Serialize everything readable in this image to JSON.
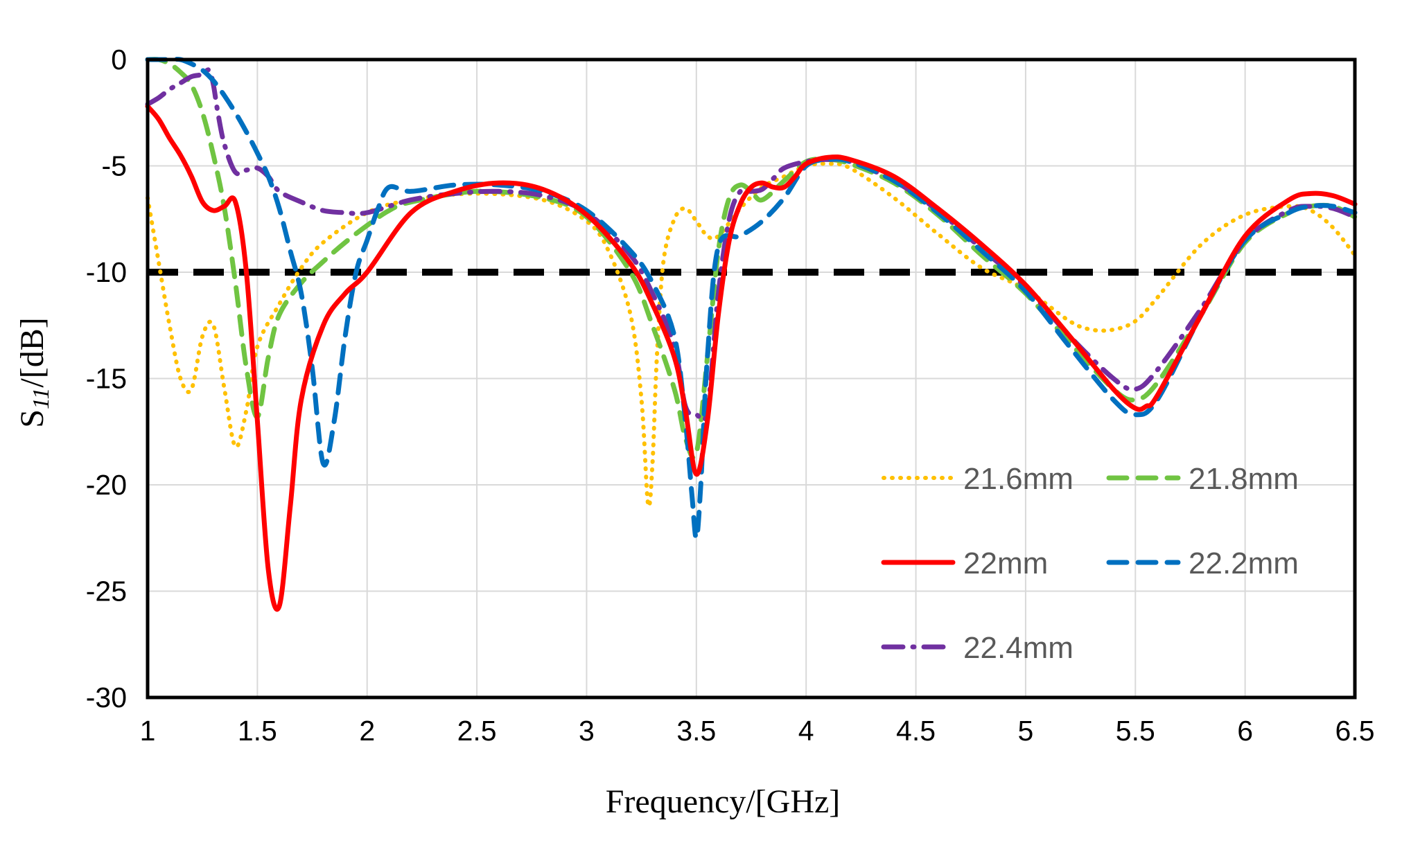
{
  "chart_data": {
    "type": "line",
    "title": "",
    "xlabel": "Frequency/[GHz]",
    "ylabel": "S11/[dB]",
    "ylabel_main": "S",
    "ylabel_sub": "11",
    "ylabel_rest": "/[dB]",
    "xlim": [
      1,
      6.5
    ],
    "ylim": [
      -30,
      0
    ],
    "xticks": [
      "1",
      "1.5",
      "2",
      "2.5",
      "3",
      "3.5",
      "4",
      "4.5",
      "5",
      "5.5",
      "6",
      "6.5"
    ],
    "yticks": [
      "0",
      "-5",
      "-10",
      "-15",
      "-20",
      "-25",
      "-30"
    ],
    "grid": true,
    "legend_position": "bottom-right",
    "reference_line": {
      "y": -10,
      "style": "dashed",
      "color": "#000000"
    },
    "series": [
      {
        "name": "21.6mm",
        "color": "#FFC000",
        "style": "dotted",
        "x": [
          1.0,
          1.05,
          1.1,
          1.15,
          1.2,
          1.25,
          1.3,
          1.35,
          1.4,
          1.45,
          1.5,
          1.6,
          1.7,
          1.8,
          2.0,
          2.2,
          2.5,
          2.8,
          3.0,
          3.1,
          3.2,
          3.25,
          3.28,
          3.3,
          3.32,
          3.35,
          3.4,
          3.45,
          3.5,
          3.55,
          3.6,
          3.7,
          3.8,
          3.9,
          4.0,
          4.1,
          4.2,
          4.4,
          4.6,
          4.8,
          5.0,
          5.2,
          5.3,
          5.4,
          5.5,
          5.6,
          5.8,
          6.0,
          6.2,
          6.3,
          6.4,
          6.5
        ],
        "y": [
          -6.5,
          -9.5,
          -12.5,
          -15.0,
          -15.5,
          -13.0,
          -12.5,
          -15.5,
          -18.2,
          -16.5,
          -13.5,
          -11.5,
          -9.8,
          -8.6,
          -7.2,
          -6.6,
          -6.3,
          -6.6,
          -7.6,
          -9.0,
          -12.0,
          -16.0,
          -20.9,
          -19.0,
          -14.0,
          -9.5,
          -7.5,
          -7.0,
          -7.6,
          -8.3,
          -8.3,
          -7.0,
          -6.0,
          -5.5,
          -5.0,
          -4.9,
          -5.1,
          -6.5,
          -8.2,
          -9.8,
          -10.8,
          -12.3,
          -12.7,
          -12.7,
          -12.3,
          -11.2,
          -8.7,
          -7.3,
          -6.9,
          -7.1,
          -7.9,
          -9.2
        ]
      },
      {
        "name": "21.8mm",
        "color": "#70C442",
        "style": "dashed",
        "x": [
          1.0,
          1.05,
          1.1,
          1.15,
          1.2,
          1.25,
          1.3,
          1.35,
          1.4,
          1.45,
          1.5,
          1.55,
          1.6,
          1.7,
          1.8,
          1.9,
          2.0,
          2.1,
          2.2,
          2.5,
          2.8,
          3.0,
          3.2,
          3.3,
          3.4,
          3.45,
          3.5,
          3.55,
          3.6,
          3.65,
          3.7,
          3.75,
          3.8,
          3.9,
          4.0,
          4.1,
          4.2,
          4.4,
          4.6,
          4.8,
          5.0,
          5.2,
          5.4,
          5.5,
          5.6,
          5.8,
          6.0,
          6.2,
          6.3,
          6.4,
          6.5
        ],
        "y": [
          0.0,
          0.0,
          -0.2,
          -0.6,
          -1.2,
          -2.5,
          -4.5,
          -7.0,
          -10.5,
          -14.5,
          -16.8,
          -14.0,
          -12.0,
          -10.5,
          -9.5,
          -8.6,
          -7.8,
          -7.1,
          -6.7,
          -6.2,
          -6.5,
          -7.4,
          -10.0,
          -12.5,
          -15.5,
          -17.8,
          -18.5,
          -14.0,
          -9.0,
          -6.5,
          -5.9,
          -6.2,
          -6.6,
          -5.7,
          -4.8,
          -4.7,
          -4.9,
          -5.8,
          -7.3,
          -9.2,
          -11.0,
          -13.3,
          -15.5,
          -16.0,
          -15.2,
          -12.0,
          -8.6,
          -7.2,
          -6.9,
          -6.9,
          -7.4
        ]
      },
      {
        "name": "22mm",
        "color": "#FF0000",
        "style": "solid",
        "x": [
          1.0,
          1.05,
          1.1,
          1.15,
          1.2,
          1.25,
          1.3,
          1.35,
          1.4,
          1.45,
          1.5,
          1.55,
          1.6,
          1.65,
          1.7,
          1.8,
          1.9,
          2.0,
          2.2,
          2.4,
          2.6,
          2.8,
          3.0,
          3.2,
          3.3,
          3.4,
          3.45,
          3.5,
          3.55,
          3.6,
          3.65,
          3.7,
          3.75,
          3.8,
          3.85,
          3.9,
          3.95,
          4.0,
          4.1,
          4.2,
          4.4,
          4.6,
          4.8,
          5.0,
          5.2,
          5.4,
          5.5,
          5.55,
          5.6,
          5.8,
          6.0,
          6.2,
          6.3,
          6.4,
          6.5
        ],
        "y": [
          -2.2,
          -2.8,
          -3.7,
          -4.5,
          -5.5,
          -6.7,
          -7.1,
          -6.9,
          -6.7,
          -10.0,
          -17.0,
          -24.0,
          -25.7,
          -21.0,
          -16.0,
          -12.5,
          -11.0,
          -10.0,
          -7.2,
          -6.2,
          -5.8,
          -6.1,
          -7.3,
          -9.6,
          -11.5,
          -14.0,
          -16.5,
          -19.5,
          -17.0,
          -12.0,
          -8.5,
          -6.8,
          -6.0,
          -5.8,
          -6.0,
          -6.0,
          -5.5,
          -4.9,
          -4.6,
          -4.7,
          -5.5,
          -7.0,
          -8.7,
          -10.6,
          -13.0,
          -15.5,
          -16.4,
          -16.3,
          -15.8,
          -12.0,
          -8.3,
          -6.6,
          -6.3,
          -6.4,
          -6.8
        ]
      },
      {
        "name": "22.2mm",
        "color": "#0070C0",
        "style": "dashed",
        "x": [
          1.0,
          1.05,
          1.1,
          1.15,
          1.2,
          1.25,
          1.3,
          1.35,
          1.4,
          1.45,
          1.5,
          1.55,
          1.6,
          1.65,
          1.7,
          1.75,
          1.8,
          1.85,
          1.9,
          1.95,
          2.0,
          2.05,
          2.1,
          2.2,
          2.4,
          2.6,
          2.8,
          3.0,
          3.2,
          3.3,
          3.4,
          3.45,
          3.48,
          3.5,
          3.52,
          3.55,
          3.6,
          3.7,
          3.8,
          3.9,
          4.0,
          4.1,
          4.2,
          4.4,
          4.6,
          4.8,
          5.0,
          5.2,
          5.4,
          5.5,
          5.6,
          5.8,
          6.0,
          6.2,
          6.3,
          6.4,
          6.5
        ],
        "y": [
          0.0,
          0.0,
          0.0,
          0.0,
          -0.2,
          -0.5,
          -1.0,
          -1.7,
          -2.5,
          -3.4,
          -4.4,
          -5.5,
          -7.0,
          -9.0,
          -11.0,
          -14.5,
          -19.0,
          -17.0,
          -13.0,
          -10.0,
          -8.5,
          -7.0,
          -6.0,
          -6.2,
          -5.9,
          -5.9,
          -6.2,
          -7.1,
          -9.0,
          -10.5,
          -13.0,
          -17.0,
          -20.5,
          -22.5,
          -20.0,
          -14.0,
          -8.8,
          -8.3,
          -7.6,
          -6.5,
          -5.0,
          -4.7,
          -4.8,
          -5.7,
          -7.2,
          -9.0,
          -10.9,
          -13.5,
          -16.0,
          -16.7,
          -16.0,
          -12.0,
          -8.5,
          -7.2,
          -6.9,
          -6.9,
          -7.2
        ]
      },
      {
        "name": "22.4mm",
        "color": "#7030A0",
        "style": "dashdot",
        "x": [
          1.0,
          1.05,
          1.1,
          1.15,
          1.2,
          1.25,
          1.28,
          1.3,
          1.32,
          1.35,
          1.4,
          1.45,
          1.5,
          1.55,
          1.6,
          1.7,
          1.8,
          1.9,
          2.0,
          2.2,
          2.4,
          2.6,
          2.8,
          3.0,
          3.2,
          3.3,
          3.4,
          3.45,
          3.5,
          3.55,
          3.6,
          3.65,
          3.7,
          3.75,
          3.8,
          3.85,
          3.9,
          4.0,
          4.1,
          4.2,
          4.4,
          4.6,
          4.8,
          5.0,
          5.2,
          5.4,
          5.5,
          5.6,
          5.8,
          6.0,
          6.2,
          6.3,
          6.4,
          6.5
        ],
        "y": [
          -2.1,
          -1.8,
          -1.4,
          -1.1,
          -0.8,
          -0.7,
          -0.5,
          -1.2,
          -2.5,
          -4.0,
          -5.3,
          -5.2,
          -5.1,
          -5.5,
          -6.2,
          -6.7,
          -7.1,
          -7.2,
          -7.2,
          -6.6,
          -6.3,
          -6.2,
          -6.4,
          -7.2,
          -9.2,
          -11.0,
          -13.5,
          -16.3,
          -16.7,
          -16.5,
          -11.0,
          -7.5,
          -6.2,
          -6.2,
          -6.1,
          -5.6,
          -5.1,
          -4.8,
          -4.7,
          -4.8,
          -5.7,
          -7.1,
          -8.9,
          -10.7,
          -13.0,
          -15.0,
          -15.5,
          -14.6,
          -11.7,
          -8.5,
          -7.1,
          -6.9,
          -7.0,
          -7.4
        ]
      }
    ]
  }
}
